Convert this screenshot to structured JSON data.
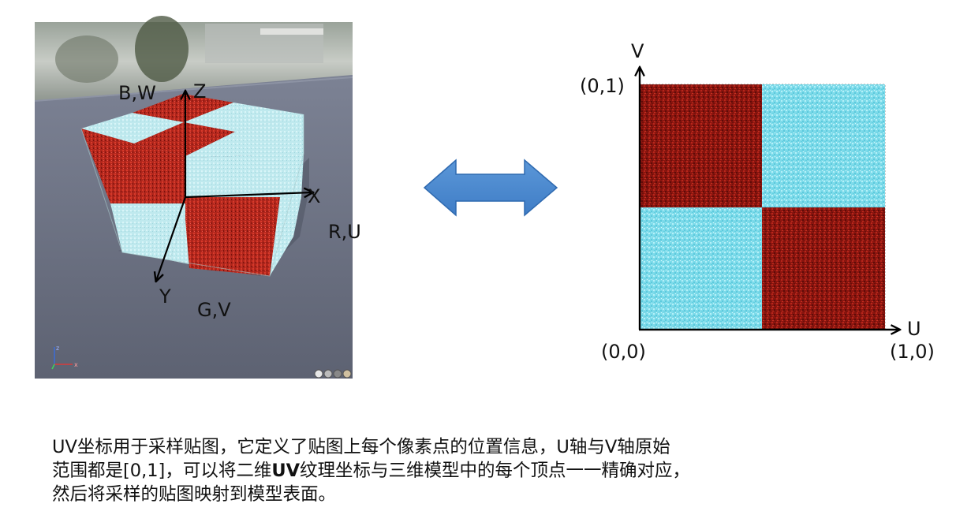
{
  "left_panel": {
    "axis_labels": {
      "z": "Z",
      "x": "X",
      "y": "Y",
      "b_w": "B,W",
      "r_u": "R,U",
      "g_v": "G,V"
    },
    "mini_gizmo": {
      "z": "z",
      "x": "x"
    }
  },
  "right_panel": {
    "axis_v": "V",
    "axis_u": "U",
    "corner_top_left": "(0,1)",
    "corner_origin": "(0,0)",
    "corner_bottom_right": "(1,0)",
    "colors": {
      "red": "#8f1a12",
      "cyan": "#7fe0ee"
    }
  },
  "caption": {
    "line1": "UV坐标用于采样贴图，它定义了贴图上每个像素点的位置信息，U轴与V轴原始",
    "line2_pre": "范围都是[0,1]，可以将二维",
    "line2_bold": "UV",
    "line2_post": "纹理坐标与三维模型中的每个顶点一一精确对应，",
    "line3": "然后将采样的贴图映射到模型表面。"
  }
}
